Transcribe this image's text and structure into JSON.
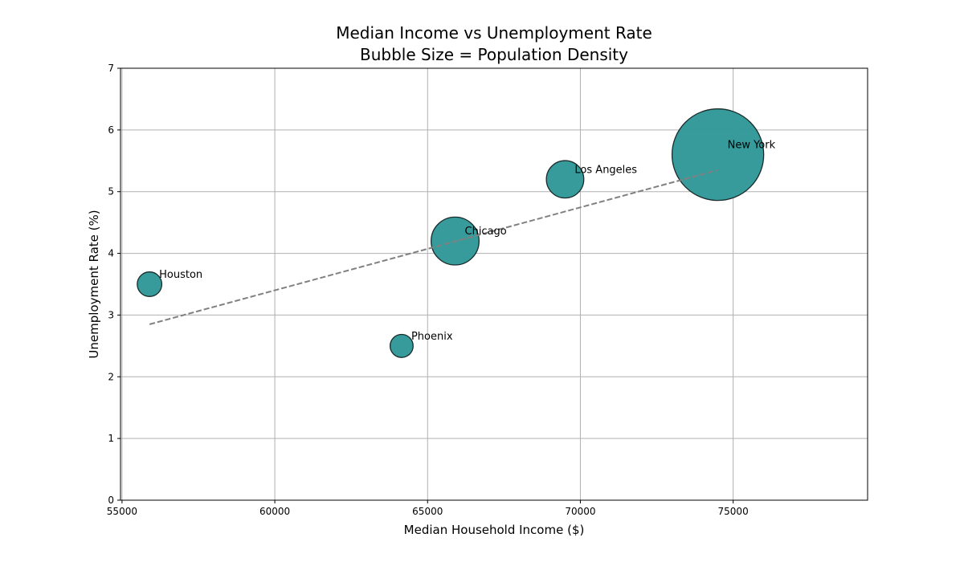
{
  "chart_data": {
    "type": "scatter",
    "title": "Median Income vs Unemployment Rate",
    "subtitle": "Bubble Size = Population Density",
    "xlabel": "Median Household Income ($)",
    "ylabel": "Unemployment Rate (%)",
    "xlim": [
      54950,
      79400
    ],
    "ylim": [
      0,
      7
    ],
    "x_ticks": [
      55000,
      60000,
      65000,
      70000,
      75000
    ],
    "y_ticks": [
      0,
      1,
      2,
      3,
      4,
      5,
      6,
      7
    ],
    "grid": true,
    "bubble_color": "#339999",
    "bubble_edge_color": "#1a2b2b",
    "trend_line_color": "#808080",
    "points": [
      {
        "label": "Houston",
        "x": 55900,
        "y": 3.5,
        "size": 485
      },
      {
        "label": "Phoenix",
        "x": 64150,
        "y": 2.5,
        "size": 425
      },
      {
        "label": "Chicago",
        "x": 65900,
        "y": 4.2,
        "size": 1845
      },
      {
        "label": "Los Angeles",
        "x": 69500,
        "y": 5.2,
        "size": 1125
      },
      {
        "label": "New York",
        "x": 74500,
        "y": 5.6,
        "size": 6750
      }
    ],
    "trend_line": {
      "x": [
        55900,
        74500
      ],
      "y": [
        2.85,
        5.35
      ],
      "style": "dashed"
    }
  }
}
